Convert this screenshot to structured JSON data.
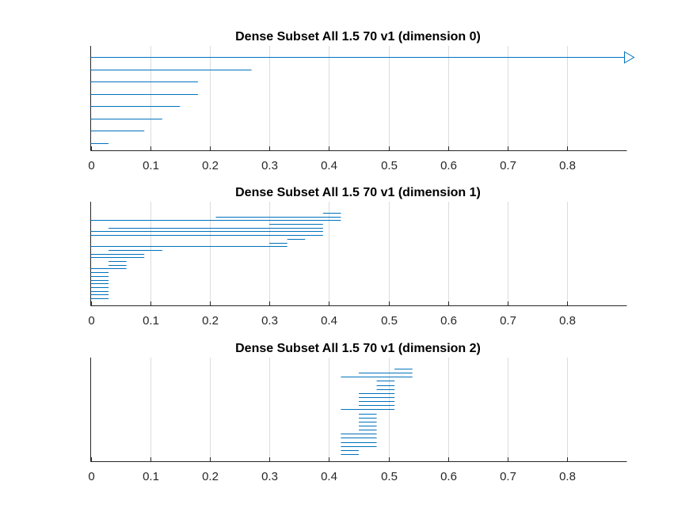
{
  "chart_data": [
    {
      "type": "barcode",
      "title": "Dense Subset All 1.5 70 v1 (dimension 0)",
      "xlim": [
        0,
        0.9
      ],
      "xticks": [
        0,
        0.1,
        0.2,
        0.3,
        0.4,
        0.5,
        0.6,
        0.7,
        0.8
      ],
      "xtick_labels": [
        "0",
        "0.1",
        "0.2",
        "0.3",
        "0.4",
        "0.5",
        "0.6",
        "0.7",
        "0.8"
      ],
      "intervals": [
        {
          "birth": 0,
          "death": null
        },
        {
          "birth": 0,
          "death": 0.27
        },
        {
          "birth": 0,
          "death": 0.18
        },
        {
          "birth": 0,
          "death": 0.18
        },
        {
          "birth": 0,
          "death": 0.15
        },
        {
          "birth": 0,
          "death": 0.12
        },
        {
          "birth": 0,
          "death": 0.09
        },
        {
          "birth": 0,
          "death": 0.03
        }
      ]
    },
    {
      "type": "barcode",
      "title": "Dense Subset All 1.5 70 v1 (dimension 1)",
      "xlim": [
        0,
        0.9
      ],
      "xticks": [
        0,
        0.1,
        0.2,
        0.3,
        0.4,
        0.5,
        0.6,
        0.7,
        0.8
      ],
      "xtick_labels": [
        "0",
        "0.1",
        "0.2",
        "0.3",
        "0.4",
        "0.5",
        "0.6",
        "0.7",
        "0.8"
      ],
      "intervals": [
        {
          "birth": 0.39,
          "death": 0.42
        },
        {
          "birth": 0.21,
          "death": 0.42
        },
        {
          "birth": 0,
          "death": 0.42
        },
        {
          "birth": 0.3,
          "death": 0.39
        },
        {
          "birth": 0.03,
          "death": 0.39
        },
        {
          "birth": 0,
          "death": 0.39
        },
        {
          "birth": 0,
          "death": 0.39
        },
        {
          "birth": 0.33,
          "death": 0.36
        },
        {
          "birth": 0.3,
          "death": 0.33
        },
        {
          "birth": 0,
          "death": 0.33
        },
        {
          "birth": 0.03,
          "death": 0.12
        },
        {
          "birth": 0,
          "death": 0.09
        },
        {
          "birth": 0,
          "death": 0.09
        },
        {
          "birth": 0.03,
          "death": 0.06
        },
        {
          "birth": 0.03,
          "death": 0.06
        },
        {
          "birth": 0,
          "death": 0.06
        },
        {
          "birth": 0,
          "death": 0.03
        },
        {
          "birth": 0,
          "death": 0.03
        },
        {
          "birth": 0,
          "death": 0.03
        },
        {
          "birth": 0,
          "death": 0.03
        },
        {
          "birth": 0,
          "death": 0.03
        },
        {
          "birth": 0,
          "death": 0.03
        },
        {
          "birth": 0,
          "death": 0.03
        },
        {
          "birth": 0,
          "death": 0.03
        }
      ]
    },
    {
      "type": "barcode",
      "title": "Dense Subset All 1.5 70 v1 (dimension 2)",
      "xlim": [
        0,
        0.9
      ],
      "xticks": [
        0,
        0.1,
        0.2,
        0.3,
        0.4,
        0.5,
        0.6,
        0.7,
        0.8
      ],
      "xtick_labels": [
        "0",
        "0.1",
        "0.2",
        "0.3",
        "0.4",
        "0.5",
        "0.6",
        "0.7",
        "0.8"
      ],
      "intervals": [
        {
          "birth": 0.51,
          "death": 0.54
        },
        {
          "birth": 0.45,
          "death": 0.54
        },
        {
          "birth": 0.42,
          "death": 0.54
        },
        {
          "birth": 0.48,
          "death": 0.51
        },
        {
          "birth": 0.48,
          "death": 0.51
        },
        {
          "birth": 0.48,
          "death": 0.51
        },
        {
          "birth": 0.45,
          "death": 0.51
        },
        {
          "birth": 0.45,
          "death": 0.51
        },
        {
          "birth": 0.45,
          "death": 0.51
        },
        {
          "birth": 0.45,
          "death": 0.51
        },
        {
          "birth": 0.42,
          "death": 0.51
        },
        {
          "birth": 0.45,
          "death": 0.48
        },
        {
          "birth": 0.45,
          "death": 0.48
        },
        {
          "birth": 0.45,
          "death": 0.48
        },
        {
          "birth": 0.45,
          "death": 0.48
        },
        {
          "birth": 0.45,
          "death": 0.48
        },
        {
          "birth": 0.42,
          "death": 0.48
        },
        {
          "birth": 0.42,
          "death": 0.48
        },
        {
          "birth": 0.42,
          "death": 0.48
        },
        {
          "birth": 0.42,
          "death": 0.48
        },
        {
          "birth": 0.42,
          "death": 0.45
        },
        {
          "birth": 0.42,
          "death": 0.45
        }
      ]
    }
  ]
}
